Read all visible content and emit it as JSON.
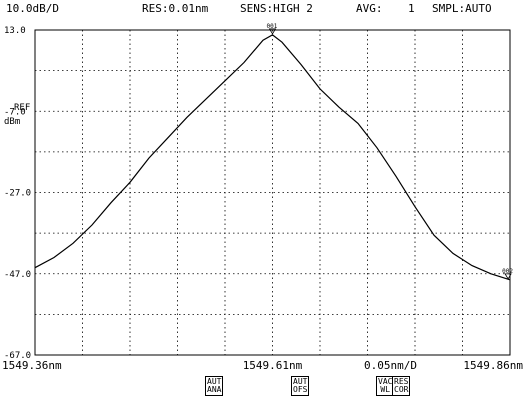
{
  "header": {
    "scale": "10.0dB/D",
    "res": "RES:0.01nm",
    "sens": "SENS:HIGH 2",
    "avg_label": "AVG:",
    "avg_value": "1",
    "smpl": "SMPL:AUTO"
  },
  "y_axis": {
    "ref_label": "REF",
    "unit": "dBm"
  },
  "x_axis": {
    "span_per_div": "0.05nm/D"
  },
  "markers": [
    {
      "label": "001",
      "x": 1549.61,
      "y": 11.8
    },
    {
      "label": "002",
      "x": 1549.858,
      "y": -48.5
    }
  ],
  "buttons": {
    "aut_ana": [
      "AUT",
      "ANA"
    ],
    "aut_ofs": [
      "AUT",
      "OFS"
    ],
    "vac_wl": [
      "VAC",
      "WL"
    ],
    "res_cor": [
      "RES",
      "COR"
    ]
  },
  "colors": {
    "trace": "#000000",
    "grid": "#000000",
    "background": "#ffffff"
  },
  "chart_data": {
    "type": "line",
    "xlabel": "",
    "ylabel": "dBm",
    "xlim": [
      1549.36,
      1549.86
    ],
    "ylim": [
      -67.0,
      13.0
    ],
    "x_divisions": 10,
    "y_divisions": 8,
    "y_ticks": [
      {
        "value": 13.0,
        "label": "13.0"
      },
      {
        "value": -7.0,
        "label": "-7.0"
      },
      {
        "value": -27.0,
        "label": "-27.0"
      },
      {
        "value": -47.0,
        "label": "-47.0"
      },
      {
        "value": -67.0,
        "label": "-67.0"
      }
    ],
    "x_ticks": [
      {
        "value": 1549.36,
        "label": "1549.36nm"
      },
      {
        "value": 1549.61,
        "label": "1549.61nm"
      },
      {
        "value": 1549.86,
        "label": "1549.86nm"
      }
    ],
    "grid": true,
    "series": [
      {
        "x": [
          1549.36,
          1549.38,
          1549.4,
          1549.42,
          1549.44,
          1549.46,
          1549.48,
          1549.5,
          1549.52,
          1549.54,
          1549.56,
          1549.58,
          1549.6,
          1549.61,
          1549.62,
          1549.64,
          1549.66,
          1549.68,
          1549.7,
          1549.72,
          1549.74,
          1549.76,
          1549.78,
          1549.8,
          1549.82,
          1549.84,
          1549.86
        ],
        "y": [
          -45.5,
          -43.0,
          -39.5,
          -35.0,
          -29.5,
          -24.5,
          -18.5,
          -13.5,
          -8.5,
          -4.0,
          0.5,
          5.0,
          10.5,
          11.8,
          10.0,
          4.5,
          -1.5,
          -6.0,
          -10.0,
          -16.0,
          -23.0,
          -30.5,
          -37.5,
          -42.0,
          -45.0,
          -47.0,
          -48.5
        ]
      }
    ]
  }
}
